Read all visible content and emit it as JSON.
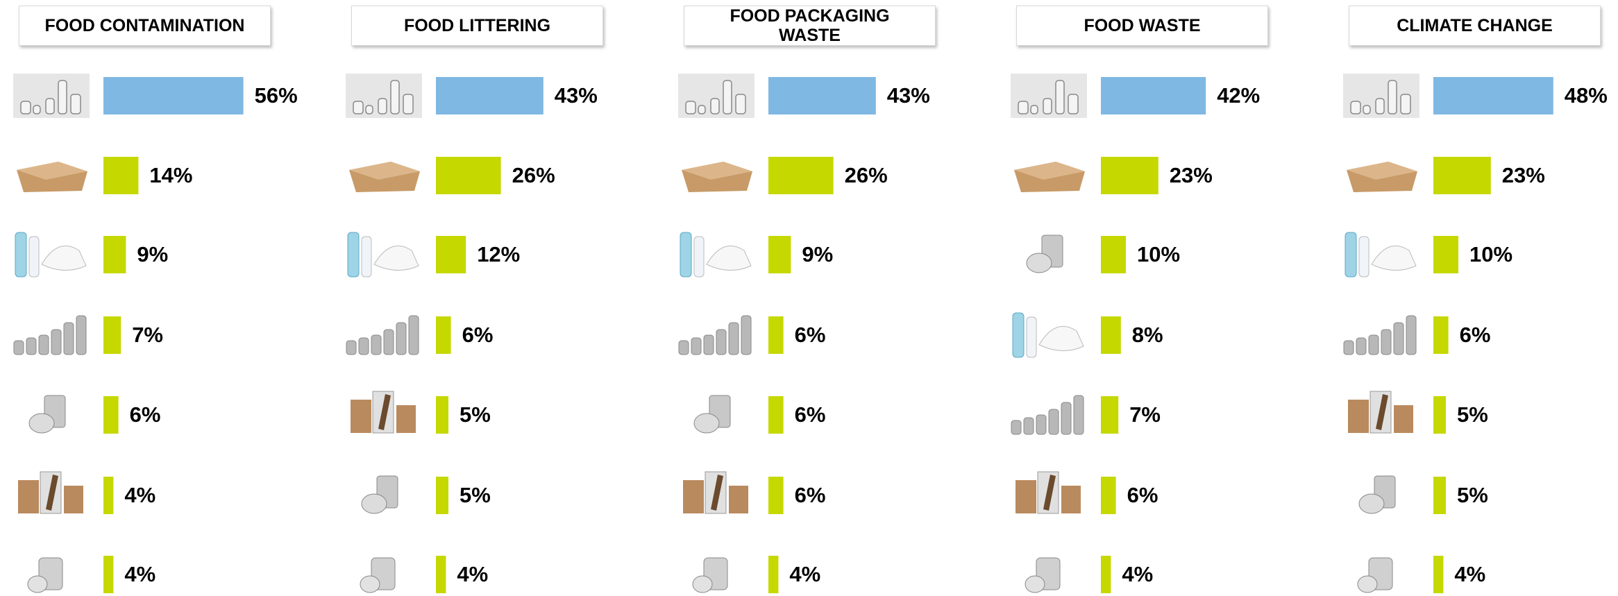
{
  "chart_data": [
    {
      "type": "bar",
      "title": "FOOD CONTAMINATION",
      "values": [
        56,
        14,
        9,
        7,
        6,
        4,
        4
      ],
      "value_labels": [
        "56%",
        "14%",
        "9%",
        "7%",
        "6%",
        "4%",
        "4%"
      ],
      "colors": [
        "#7fb8e3",
        "#c5d800",
        "#c5d800",
        "#c5d800",
        "#c5d800",
        "#c5d800",
        "#c5d800"
      ]
    },
    {
      "type": "bar",
      "title": "FOOD LITTERING",
      "values": [
        43,
        26,
        12,
        6,
        5,
        5,
        4
      ],
      "value_labels": [
        "43%",
        "26%",
        "12%",
        "6%",
        "5%",
        "5%",
        "4%"
      ],
      "colors": [
        "#7fb8e3",
        "#c5d800",
        "#c5d800",
        "#c5d800",
        "#c5d800",
        "#c5d800",
        "#c5d800"
      ]
    },
    {
      "type": "bar",
      "title": "FOOD PACKAGING WASTE",
      "values": [
        43,
        26,
        9,
        6,
        6,
        6,
        4
      ],
      "value_labels": [
        "43%",
        "26%",
        "9%",
        "6%",
        "6%",
        "6%",
        "4%"
      ],
      "colors": [
        "#7fb8e3",
        "#c5d800",
        "#c5d800",
        "#c5d800",
        "#c5d800",
        "#c5d800",
        "#c5d800"
      ]
    },
    {
      "type": "bar",
      "title": "FOOD WASTE",
      "values": [
        42,
        23,
        10,
        8,
        7,
        6,
        4
      ],
      "value_labels": [
        "42%",
        "23%",
        "10%",
        "8%",
        "7%",
        "6%",
        "4%"
      ],
      "colors": [
        "#7fb8e3",
        "#c5d800",
        "#c5d800",
        "#c5d800",
        "#c5d800",
        "#c5d800",
        "#c5d800"
      ]
    },
    {
      "type": "bar",
      "title": "CLIMATE CHANGE",
      "values": [
        48,
        23,
        10,
        6,
        5,
        5,
        4
      ],
      "value_labels": [
        "48%",
        "23%",
        "10%",
        "6%",
        "5%",
        "5%",
        "4%"
      ],
      "colors": [
        "#7fb8e3",
        "#c5d800",
        "#c5d800",
        "#c5d800",
        "#c5d800",
        "#c5d800",
        "#c5d800"
      ]
    }
  ]
}
